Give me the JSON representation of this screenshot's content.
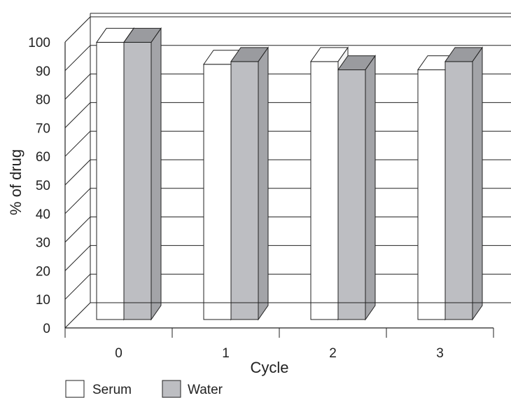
{
  "chart_data": {
    "type": "bar",
    "categories": [
      "0",
      "1",
      "2",
      "3"
    ],
    "series": [
      {
        "name": "Serum",
        "values": [
          101,
          93,
          94,
          91
        ]
      },
      {
        "name": "Water",
        "values": [
          101,
          94,
          91,
          94
        ]
      }
    ],
    "xlabel": "Cycle",
    "ylabel": "% of drug",
    "ylim": [
      0,
      100
    ],
    "yticks": [
      "0",
      "10",
      "20",
      "30",
      "40",
      "50",
      "60",
      "70",
      "80",
      "90",
      "100"
    ],
    "grid": true,
    "legend": "bottom-left",
    "three_d": true
  },
  "colors": {
    "serum_front": "#ffffff",
    "water_front": "#bdbec2",
    "water_side": "#a3a4a8",
    "water_top": "#9a9b9f",
    "line": "#222222"
  }
}
